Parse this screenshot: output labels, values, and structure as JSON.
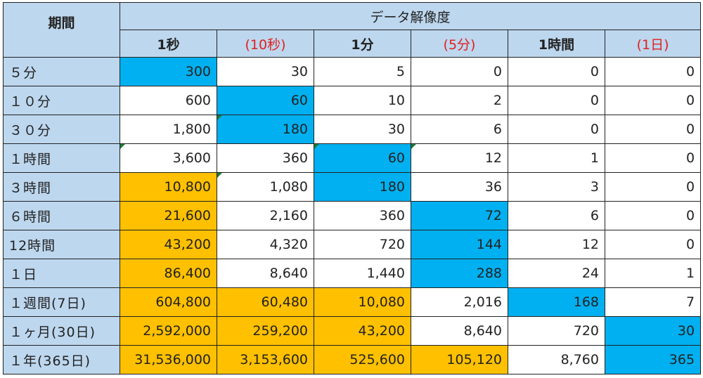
{
  "header": {
    "period_label": "期間",
    "resolution_label": "データ解像度",
    "columns": [
      {
        "label": "1秒",
        "red": false
      },
      {
        "label": "(10秒)",
        "red": true
      },
      {
        "label": "1分",
        "red": false
      },
      {
        "label": "(5分)",
        "red": true
      },
      {
        "label": "1時間",
        "red": false
      },
      {
        "label": "(1日)",
        "red": true
      }
    ]
  },
  "colors": {
    "header_bg": "#bdd7ee",
    "highlight_blue": "#00b0f0",
    "highlight_orange": "#ffc000",
    "red_text": "#e02020"
  },
  "rows": [
    {
      "period": "５分",
      "cells": [
        {
          "v": "300",
          "bg": "blue"
        },
        {
          "v": "30",
          "bg": "white"
        },
        {
          "v": "5",
          "bg": "white"
        },
        {
          "v": "0",
          "bg": "white"
        },
        {
          "v": "0",
          "bg": "white"
        },
        {
          "v": "0",
          "bg": "white"
        }
      ]
    },
    {
      "period": "１０分",
      "cells": [
        {
          "v": "600",
          "bg": "white"
        },
        {
          "v": "60",
          "bg": "blue"
        },
        {
          "v": "10",
          "bg": "white"
        },
        {
          "v": "2",
          "bg": "white"
        },
        {
          "v": "0",
          "bg": "white"
        },
        {
          "v": "0",
          "bg": "white"
        }
      ]
    },
    {
      "period": "３０分",
      "cells": [
        {
          "v": "1,800",
          "bg": "white"
        },
        {
          "v": "180",
          "bg": "blue",
          "tri": true
        },
        {
          "v": "30",
          "bg": "white"
        },
        {
          "v": "6",
          "bg": "white"
        },
        {
          "v": "0",
          "bg": "white"
        },
        {
          "v": "0",
          "bg": "white"
        }
      ]
    },
    {
      "period": "１時間",
      "cells": [
        {
          "v": "3,600",
          "bg": "white",
          "tri": true
        },
        {
          "v": "360",
          "bg": "white"
        },
        {
          "v": "60",
          "bg": "blue",
          "tri": true
        },
        {
          "v": "12",
          "bg": "white",
          "tri": true
        },
        {
          "v": "1",
          "bg": "white"
        },
        {
          "v": "0",
          "bg": "white"
        }
      ]
    },
    {
      "period": "３時間",
      "cells": [
        {
          "v": "10,800",
          "bg": "orange"
        },
        {
          "v": "1,080",
          "bg": "white",
          "tri": true
        },
        {
          "v": "180",
          "bg": "blue"
        },
        {
          "v": "36",
          "bg": "white"
        },
        {
          "v": "3",
          "bg": "white"
        },
        {
          "v": "0",
          "bg": "white"
        }
      ]
    },
    {
      "period": "６時間",
      "cells": [
        {
          "v": "21,600",
          "bg": "orange"
        },
        {
          "v": "2,160",
          "bg": "white"
        },
        {
          "v": "360",
          "bg": "white"
        },
        {
          "v": "72",
          "bg": "blue"
        },
        {
          "v": "6",
          "bg": "white"
        },
        {
          "v": "0",
          "bg": "white"
        }
      ]
    },
    {
      "period": "12時間",
      "cells": [
        {
          "v": "43,200",
          "bg": "orange"
        },
        {
          "v": "4,320",
          "bg": "white"
        },
        {
          "v": "720",
          "bg": "white"
        },
        {
          "v": "144",
          "bg": "blue"
        },
        {
          "v": "12",
          "bg": "white"
        },
        {
          "v": "0",
          "bg": "white"
        }
      ]
    },
    {
      "period": "１日",
      "cells": [
        {
          "v": "86,400",
          "bg": "orange"
        },
        {
          "v": "8,640",
          "bg": "white"
        },
        {
          "v": "1,440",
          "bg": "white"
        },
        {
          "v": "288",
          "bg": "blue"
        },
        {
          "v": "24",
          "bg": "white"
        },
        {
          "v": "1",
          "bg": "white"
        }
      ]
    },
    {
      "period": "１週間(7日)",
      "cells": [
        {
          "v": "604,800",
          "bg": "orange"
        },
        {
          "v": "60,480",
          "bg": "orange"
        },
        {
          "v": "10,080",
          "bg": "orange"
        },
        {
          "v": "2,016",
          "bg": "white"
        },
        {
          "v": "168",
          "bg": "blue"
        },
        {
          "v": "7",
          "bg": "white"
        }
      ]
    },
    {
      "period": "１ヶ月(30日)",
      "cells": [
        {
          "v": "2,592,000",
          "bg": "orange"
        },
        {
          "v": "259,200",
          "bg": "orange"
        },
        {
          "v": "43,200",
          "bg": "orange"
        },
        {
          "v": "8,640",
          "bg": "white"
        },
        {
          "v": "720",
          "bg": "white"
        },
        {
          "v": "30",
          "bg": "blue"
        }
      ]
    },
    {
      "period": "１年(365日)",
      "cells": [
        {
          "v": "31,536,000",
          "bg": "orange"
        },
        {
          "v": "3,153,600",
          "bg": "orange"
        },
        {
          "v": "525,600",
          "bg": "orange"
        },
        {
          "v": "105,120",
          "bg": "orange"
        },
        {
          "v": "8,760",
          "bg": "white"
        },
        {
          "v": "365",
          "bg": "blue"
        }
      ]
    }
  ]
}
